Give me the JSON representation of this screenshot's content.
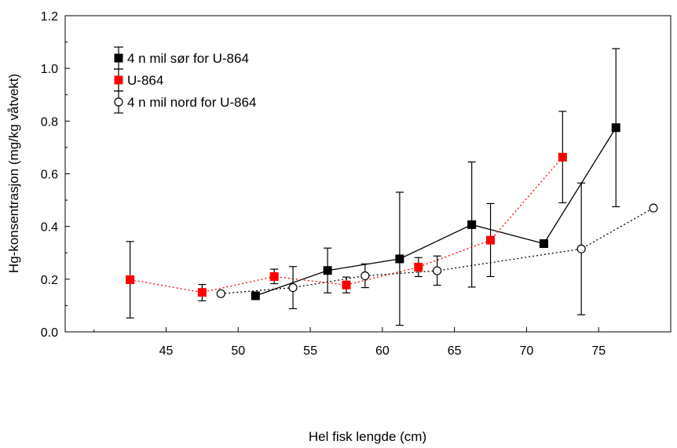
{
  "chart_data": {
    "type": "line",
    "xlabel": "Hel fisk lengde (cm)",
    "ylabel": "Hg-konsentrasjon (mg/kg våtvekt)",
    "xlim": [
      38,
      80
    ],
    "ylim": [
      0,
      1.2
    ],
    "x_ticks": [
      45,
      50,
      55,
      60,
      65,
      70,
      75
    ],
    "y_ticks": [
      0.0,
      0.2,
      0.4,
      0.6,
      0.8,
      1.0,
      1.2
    ],
    "x_tick_labels": [
      "45",
      "50",
      "55",
      "60",
      "65",
      "70",
      "75"
    ],
    "y_tick_labels": [
      "0.0",
      "0.2",
      "0.4",
      "0.6",
      "0.8",
      "1.0",
      "1.2"
    ],
    "grid": false,
    "legend_position": "top-left",
    "series": [
      {
        "name": "4 n mil sør for U-864",
        "color": "#000000",
        "marker": "filled-square",
        "line_style": "solid",
        "x": [
          51.2,
          56.2,
          61.2,
          66.2,
          71.2,
          76.2
        ],
        "y": [
          0.137,
          0.233,
          0.277,
          0.407,
          0.335,
          0.775
        ],
        "y_low": [
          null,
          0.148,
          0.025,
          0.17,
          null,
          0.475
        ],
        "y_high": [
          null,
          0.318,
          0.53,
          0.645,
          null,
          1.075
        ]
      },
      {
        "name": "U-864",
        "color": "#ff0000",
        "marker": "filled-square",
        "line_style": "dotted",
        "x": [
          42.5,
          47.5,
          52.5,
          57.5,
          62.5,
          67.5,
          72.5
        ],
        "y": [
          0.198,
          0.15,
          0.21,
          0.178,
          0.246,
          0.348,
          0.663
        ],
        "y_low": [
          0.053,
          0.118,
          0.183,
          0.148,
          0.21,
          0.21,
          0.49
        ],
        "y_high": [
          0.343,
          0.18,
          0.238,
          0.208,
          0.282,
          0.487,
          0.837
        ]
      },
      {
        "name": "4 n mil nord for U-864",
        "color": "#000000",
        "marker": "open-circle",
        "line_style": "dotted",
        "x": [
          48.8,
          53.8,
          58.8,
          63.8,
          73.8,
          78.8
        ],
        "y": [
          0.145,
          0.168,
          0.213,
          0.232,
          0.315,
          0.47
        ],
        "y_low": [
          null,
          0.088,
          0.168,
          0.177,
          0.065,
          null
        ],
        "y_high": [
          null,
          0.248,
          0.258,
          0.288,
          0.565,
          null
        ]
      }
    ]
  }
}
